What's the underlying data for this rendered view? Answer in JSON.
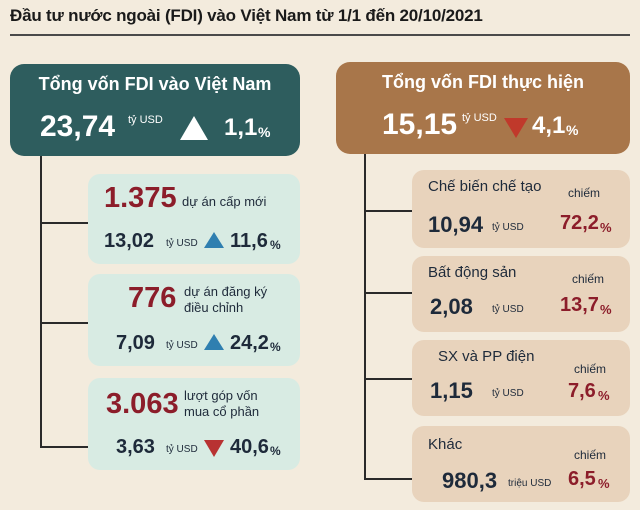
{
  "title": "Đầu tư nước ngoài (FDI) vào Việt Nam từ 1/1 đến 20/10/2021",
  "left_panel": {
    "title": "Tổng vốn FDI vào Việt Nam",
    "value": "23,74",
    "unit": "tỷ USD",
    "change": "1,1",
    "change_sign": "%",
    "direction": "up",
    "color": "#2e5d5e",
    "cards": [
      {
        "count": "1.375",
        "label": "dự án cấp mới",
        "amount": "13,02",
        "unit": "tỷ USD",
        "change": "11,6",
        "change_sign": "%",
        "direction": "up"
      },
      {
        "count": "776",
        "label_line1": "dự án đăng ký",
        "label_line2": "điều chỉnh",
        "amount": "7,09",
        "unit": "tỷ USD",
        "change": "24,2",
        "change_sign": "%",
        "direction": "up"
      },
      {
        "count": "3.063",
        "label_line1": "lượt góp vốn",
        "label_line2": "mua cổ phần",
        "amount": "3,63",
        "unit": "tỷ USD",
        "change": "40,6",
        "change_sign": "%",
        "direction": "down"
      }
    ]
  },
  "right_panel": {
    "title": "Tổng vốn FDI thực hiện",
    "value": "15,15",
    "unit": "tỷ USD",
    "change": "4,1",
    "change_sign": "%",
    "direction": "down",
    "color": "#a8764a",
    "cards": [
      {
        "name": "Chế biến chế tạo",
        "amount": "10,94",
        "unit": "tỷ USD",
        "share_label": "chiếm",
        "share": "72,2",
        "share_sign": "%"
      },
      {
        "name": "Bất động sản",
        "amount": "2,08",
        "unit": "tỷ USD",
        "share_label": "chiếm",
        "share": "13,7",
        "share_sign": "%"
      },
      {
        "name": "SX và PP điện",
        "amount": "1,15",
        "unit": "tỷ USD",
        "share_label": "chiếm",
        "share": "7,6",
        "share_sign": "%"
      },
      {
        "name": "Khác",
        "amount": "980,3",
        "unit": "triệu USD",
        "share_label": "chiếm",
        "share": "6,5",
        "share_sign": "%"
      }
    ]
  }
}
